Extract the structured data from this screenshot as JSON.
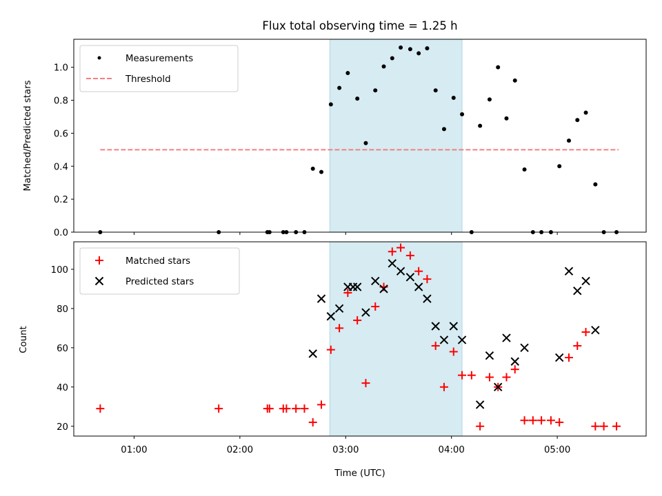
{
  "title": "Flux total observing time = 1.25 h",
  "colors": {
    "measurement": "#000000",
    "threshold": "#f08080",
    "matched": "#ff0000",
    "predicted": "#000000",
    "span": "#add8e6"
  },
  "chart_data": [
    {
      "type": "scatter",
      "ylabel": "Matched/Predicted stars",
      "xlim": [
        0.43,
        5.84
      ],
      "ylim": [
        0,
        1.17
      ],
      "yticks": [
        0.0,
        0.2,
        0.4,
        0.6,
        0.8,
        1.0
      ],
      "yticklabels": [
        "0.0",
        "0.2",
        "0.4",
        "0.6",
        "0.8",
        "1.0"
      ],
      "xticks": [
        1,
        2,
        3,
        4,
        5
      ],
      "shaded_span": [
        2.85,
        4.1
      ],
      "legend_position": "upper-left",
      "threshold": {
        "name": "Threshold",
        "y": 0.5,
        "x_range": [
          0.68,
          5.58
        ]
      },
      "series": [
        {
          "name": "Measurements",
          "x": [
            0.68,
            1.8,
            2.26,
            2.28,
            2.41,
            2.44,
            2.53,
            2.61,
            2.69,
            2.77,
            2.86,
            2.94,
            3.02,
            3.11,
            3.19,
            3.28,
            3.36,
            3.44,
            3.52,
            3.61,
            3.69,
            3.77,
            3.85,
            3.93,
            4.02,
            4.1,
            4.19,
            4.27,
            4.36,
            4.44,
            4.52,
            4.6,
            4.69,
            4.77,
            4.85,
            4.94,
            5.02,
            5.11,
            5.19,
            5.27,
            5.36,
            5.44,
            5.56
          ],
          "y": [
            0.0,
            0.0,
            0.0,
            0.0,
            0.0,
            0.0,
            0.0,
            0.0,
            0.385,
            0.365,
            0.775,
            0.875,
            0.965,
            0.81,
            0.54,
            0.86,
            1.005,
            1.055,
            1.12,
            1.11,
            1.085,
            1.115,
            0.86,
            0.625,
            0.815,
            0.715,
            0.0,
            0.645,
            0.805,
            1.0,
            0.69,
            0.92,
            0.38,
            0.0,
            0.0,
            0.0,
            0.4,
            0.555,
            0.68,
            0.725,
            0.29,
            0.0,
            0.0
          ]
        }
      ]
    },
    {
      "type": "scatter",
      "xlabel": "Time (UTC)",
      "ylabel": "Count",
      "xlim": [
        0.43,
        5.84
      ],
      "ylim": [
        15,
        114
      ],
      "yticks": [
        20,
        40,
        60,
        80,
        100
      ],
      "yticklabels": [
        "20",
        "40",
        "60",
        "80",
        "100"
      ],
      "xticks": [
        1,
        2,
        3,
        4,
        5
      ],
      "xticklabels": [
        "01:00",
        "02:00",
        "03:00",
        "04:00",
        "05:00"
      ],
      "shaded_span": [
        2.85,
        4.1
      ],
      "legend_position": "upper-left",
      "series": [
        {
          "name": "Matched stars",
          "x": [
            0.68,
            1.8,
            2.26,
            2.28,
            2.41,
            2.44,
            2.53,
            2.61,
            2.69,
            2.77,
            2.86,
            2.94,
            3.02,
            3.11,
            3.19,
            3.28,
            3.36,
            3.44,
            3.52,
            3.61,
            3.69,
            3.77,
            3.85,
            3.93,
            4.02,
            4.1,
            4.19,
            4.27,
            4.36,
            4.44,
            4.52,
            4.6,
            4.69,
            4.77,
            4.85,
            4.94,
            5.02,
            5.11,
            5.19,
            5.27,
            5.36,
            5.44,
            5.56
          ],
          "y": [
            29,
            29,
            29,
            29,
            29,
            29,
            29,
            29,
            22,
            31,
            59,
            70,
            88,
            74,
            42,
            81,
            91,
            109,
            111,
            107,
            99,
            95,
            61,
            40,
            58,
            46,
            46,
            20,
            45,
            40,
            45,
            49,
            23,
            23,
            23,
            23,
            22,
            55,
            61,
            68,
            20,
            20,
            20
          ]
        },
        {
          "name": "Predicted stars",
          "x": [
            2.69,
            2.77,
            2.86,
            2.94,
            3.02,
            3.07,
            3.11,
            3.19,
            3.28,
            3.36,
            3.44,
            3.52,
            3.61,
            3.69,
            3.77,
            3.85,
            3.93,
            4.02,
            4.1,
            4.27,
            4.36,
            4.44,
            4.52,
            4.6,
            4.69,
            5.02,
            5.11,
            5.19,
            5.27,
            5.36
          ],
          "y": [
            57,
            85,
            76,
            80,
            91,
            91,
            91,
            78,
            94,
            90,
            103,
            99,
            96,
            91,
            85,
            71,
            64,
            71,
            64,
            31,
            56,
            40,
            65,
            53,
            60,
            55,
            99,
            89,
            94,
            69
          ]
        }
      ]
    }
  ]
}
